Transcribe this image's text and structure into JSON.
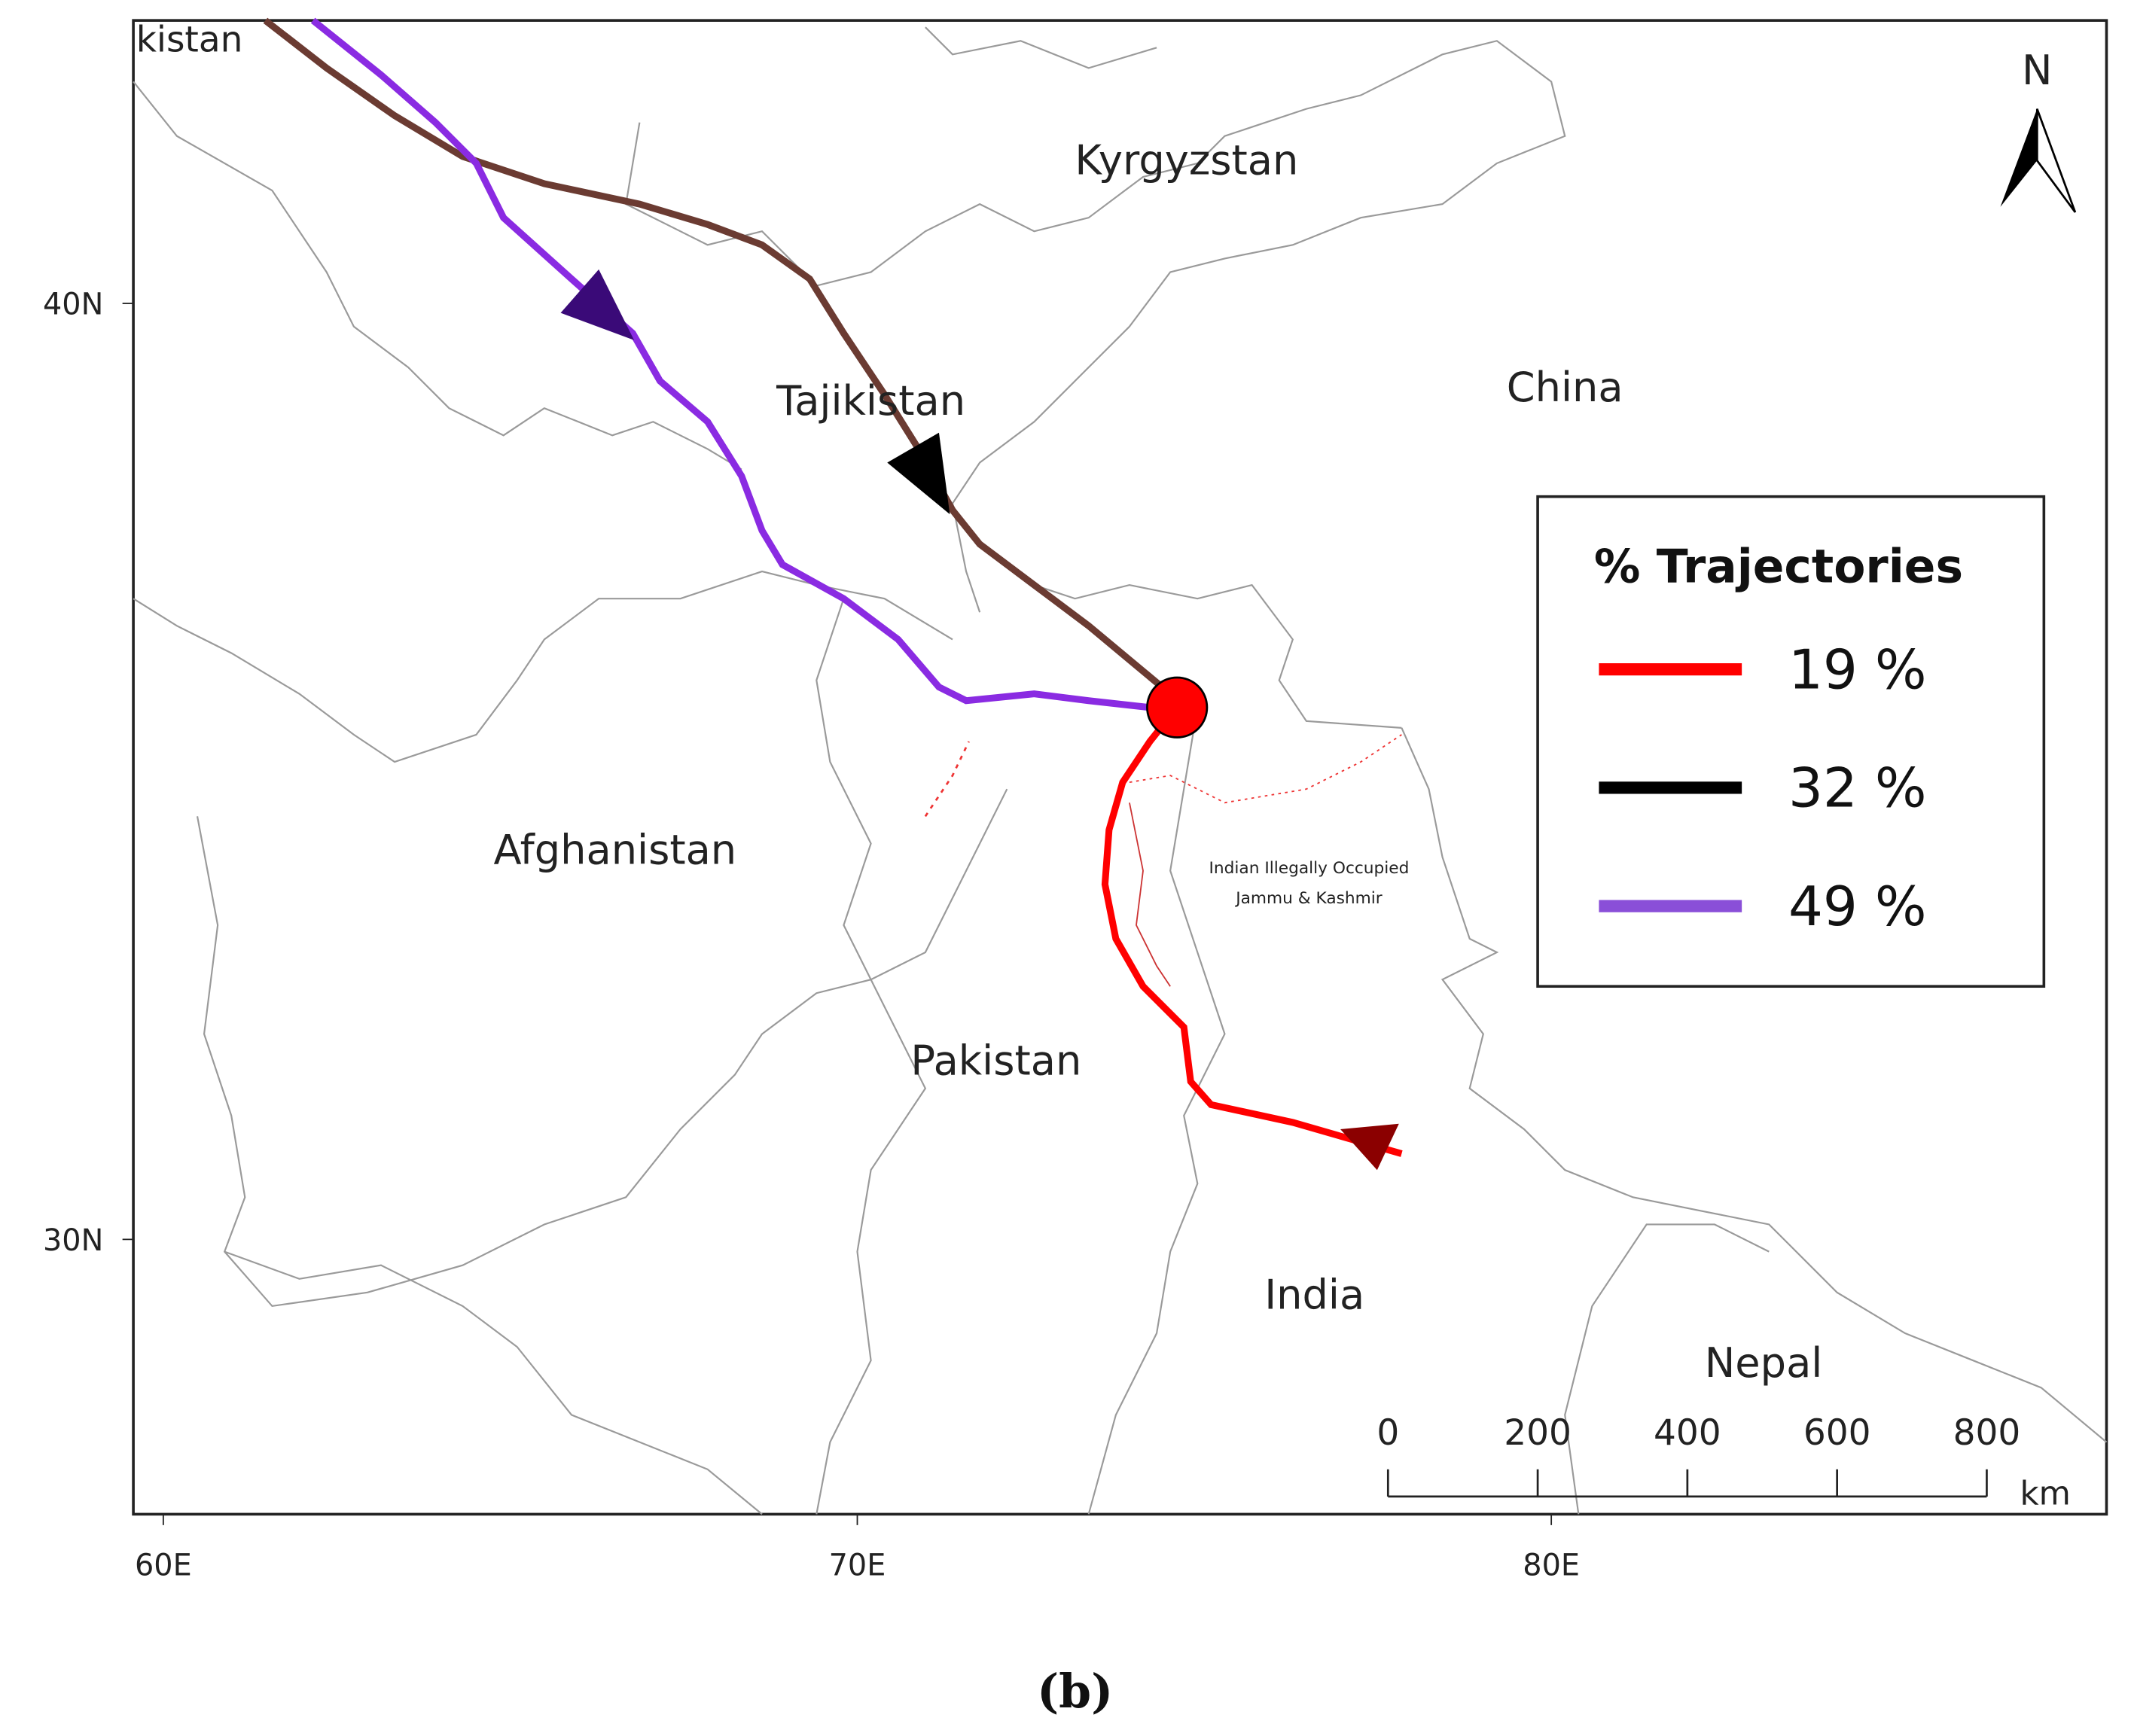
{
  "map": {
    "partial_label": "kistan",
    "countries": [
      "Kyrgyzstan",
      "Tajikistan",
      "China",
      "Afghanistan",
      "Pakistan",
      "India",
      "Nepal"
    ],
    "region_label": [
      "Indian Illegally Occupied",
      "Jammu & Kashmir"
    ],
    "north": "N",
    "lat_ticks": [
      "40N",
      "30N"
    ],
    "lon_ticks": [
      "60E",
      "70E",
      "80E"
    ],
    "legend": {
      "title": "% Trajectories",
      "items": [
        {
          "label": "19 %",
          "color": "#ff0000"
        },
        {
          "label": "32 %",
          "color": "#000000"
        },
        {
          "label": "49 %",
          "color": "#8a4fd8"
        }
      ]
    },
    "scale_bar": {
      "ticks": [
        "0",
        "200",
        "400",
        "600",
        "800"
      ],
      "unit": "km"
    },
    "caption": "(b)"
  }
}
